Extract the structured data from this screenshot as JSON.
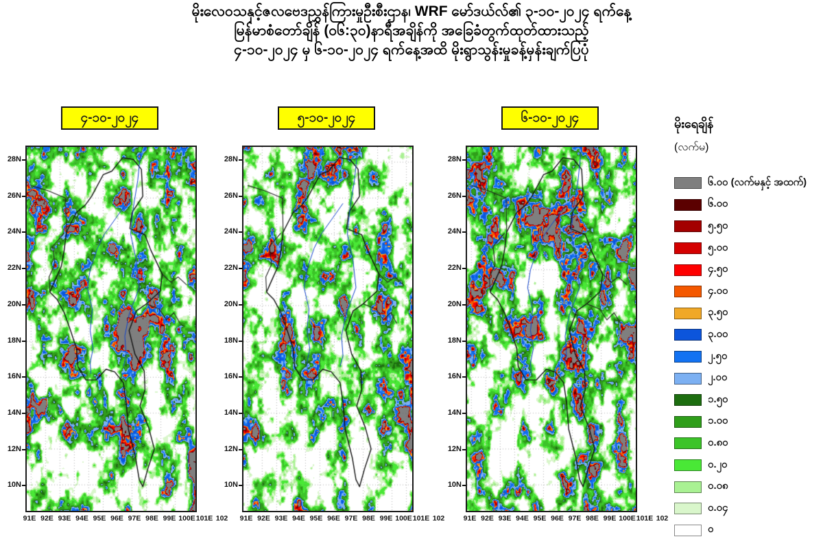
{
  "title": {
    "line1": "မိုးလေဝသနှင့်ဇလဗေဒညွှန်ကြားမှုဦးစီးဌာန၊ WRF မော်ဒယ်လ်၏  ၃-၁၀-၂၀၂၄ ရက်နေ့",
    "line2": "မြန်မာစံတော်ချိန် (၀၆:၃၀)နာရီအချိန်ကို အခြေခံတွက်ထုတ်ထားသည့်",
    "line3": "၄-၁၀-၂၀၂၄  မှ ၆-၁၀-၂၀၂၄ ရက်နေ့အထိ မိုးရွာသွန်းမှုခန့်မှန်းချက်ပြပုံ"
  },
  "panels": [
    {
      "date_label": "၄-၁၀-၂၀၂၄"
    },
    {
      "date_label": "၅-၁၀-၂၀၂၄"
    },
    {
      "date_label": "၆-၁၀-၂၀၂၄"
    }
  ],
  "axes": {
    "lat_labels": [
      "28N",
      "26N",
      "24N",
      "22N",
      "20N",
      "18N",
      "16N",
      "14N",
      "12N",
      "10N"
    ],
    "lon_labels": [
      "91E",
      "92E",
      "93E",
      "94E",
      "95E",
      "96E",
      "97E",
      "98E",
      "99E",
      "100E",
      "101E",
      "102"
    ]
  },
  "legend": {
    "title": "မိုးရေချိန်",
    "unit": "(လက်မ)",
    "entries": [
      {
        "label": "၆.၀၀  (လက်မနှင့် အထက်)",
        "value_in": 6.0,
        "color": "#7f7f7f"
      },
      {
        "label": "၆.၀၀",
        "value_in": 6.0,
        "color": "#5b0000"
      },
      {
        "label": "၅.၅၀",
        "value_in": 5.5,
        "color": "#a30000"
      },
      {
        "label": "၅.၀၀",
        "value_in": 5.0,
        "color": "#d40000"
      },
      {
        "label": "၄.၅၀",
        "value_in": 4.5,
        "color": "#fe0000"
      },
      {
        "label": "၄.၀၀",
        "value_in": 4.0,
        "color": "#f45800"
      },
      {
        "label": "၃.၅၀",
        "value_in": 3.5,
        "color": "#f0a828"
      },
      {
        "label": "၃.၀၀",
        "value_in": 3.0,
        "color": "#0c55dc"
      },
      {
        "label": "၂.၅၀",
        "value_in": 2.5,
        "color": "#1272f2"
      },
      {
        "label": "၂.၀၀",
        "value_in": 2.0,
        "color": "#7cb0f2"
      },
      {
        "label": "၁.၅၀",
        "value_in": 1.5,
        "color": "#1d6e10"
      },
      {
        "label": "၁.၀၀",
        "value_in": 1.0,
        "color": "#2f9e1a"
      },
      {
        "label": "၀.၈၀",
        "value_in": 0.8,
        "color": "#3cc429"
      },
      {
        "label": "၀.၂၀",
        "value_in": 0.2,
        "color": "#49e836"
      },
      {
        "label": "၀.၀၈",
        "value_in": 0.08,
        "color": "#a9f193"
      },
      {
        "label": "၀.၀၄",
        "value_in": 0.04,
        "color": "#d9f6cb"
      },
      {
        "label": "၀",
        "value_in": 0,
        "color": "#ffffff"
      }
    ]
  },
  "chart_data": {
    "type": "heatmap",
    "subtype": "rainfall-forecast-map",
    "panel_dates": [
      "၄-၁၀-၂၀၂၄",
      "၅-၁၀-၂၀၂၄",
      "၆-၁၀-၂၀၂၄"
    ],
    "lat_ticks": [
      "28N",
      "26N",
      "24N",
      "22N",
      "20N",
      "18N",
      "16N",
      "14N",
      "12N",
      "10N"
    ],
    "lon_ticks": [
      "91E",
      "92E",
      "93E",
      "94E",
      "95E",
      "96E",
      "97E",
      "98E",
      "99E",
      "100E",
      "101E",
      "102"
    ],
    "legend_title": "မိုးရေချိန် (လက်မ)",
    "scale_inches": [
      6.0,
      6.0,
      5.5,
      5.0,
      4.5,
      4.0,
      3.5,
      3.0,
      2.5,
      2.0,
      1.5,
      1.0,
      0.8,
      0.2,
      0.08,
      0.04,
      0
    ]
  }
}
